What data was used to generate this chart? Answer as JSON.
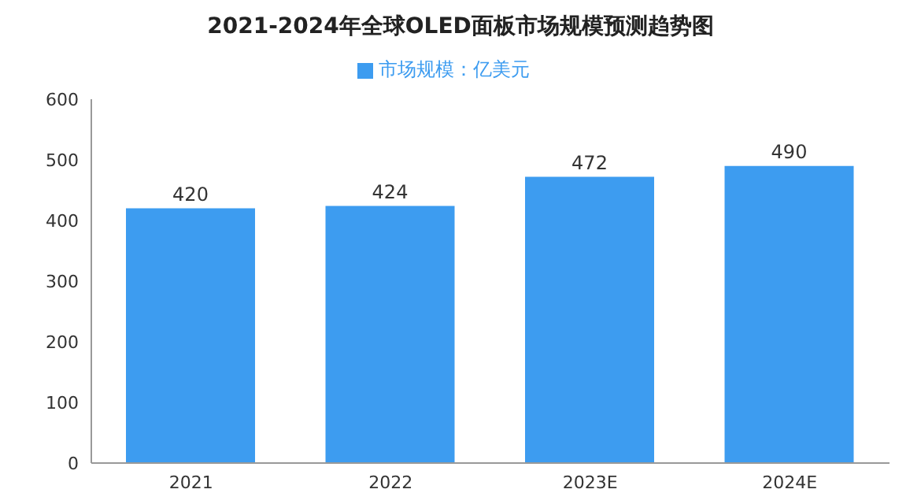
{
  "chart_data": {
    "type": "bar",
    "title": "2021-2024年全球OLED面板市场规模预测趋势图",
    "categories": [
      "2021",
      "2022",
      "2023E",
      "2024E"
    ],
    "series": [
      {
        "name": "市场规模：亿美元",
        "color": "#3d9cf0",
        "values": [
          420,
          424,
          472,
          490
        ]
      }
    ],
    "ylim": [
      0,
      600
    ],
    "yticks": [
      0,
      100,
      200,
      300,
      400,
      500,
      600
    ],
    "grid": false,
    "legend": "top",
    "data_labels": true
  }
}
